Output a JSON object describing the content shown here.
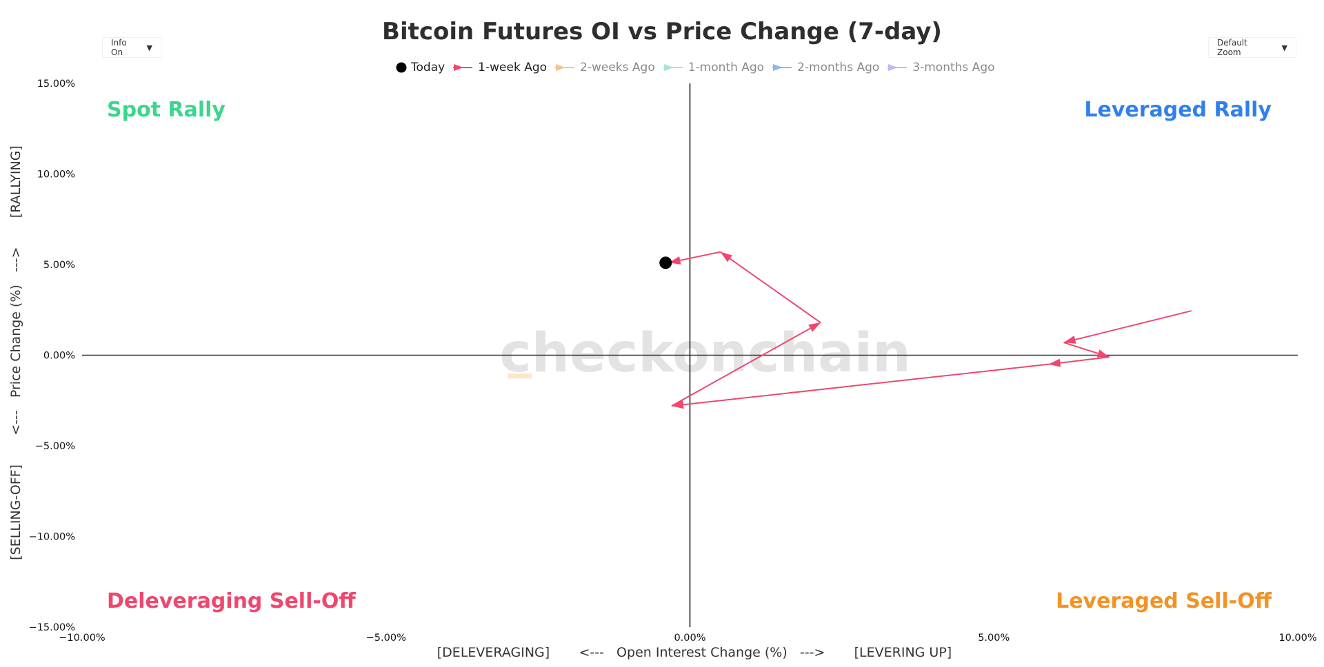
{
  "controls": {
    "info_label": "Info On",
    "zoom_label": "Default Zoom",
    "dropdown_arrow": "▼"
  },
  "watermark": "checkonchain",
  "quadrants": {
    "top_left": "Spot Rally",
    "top_right": "Leveraged Rally",
    "bottom_left": "Deleveraging Sell-Off",
    "bottom_right": "Leveraged Sell-Off"
  },
  "colors": {
    "spot_rally": "#3bd68e",
    "leveraged_rally": "#2f80ed",
    "deleveraging": "#ef476f",
    "leveraged_selloff": "#f39325",
    "today": "#000000",
    "week1": "#ef476f",
    "week2": "#f8c48a",
    "month1": "#a8e6cf",
    "month2": "#8ab8ee",
    "month3": "#c3b7f3"
  },
  "chart_data": {
    "type": "line",
    "title": "Bitcoin Futures OI vs Price Change (7-day)",
    "xlabel": "[DELEVERAGING]       <---   Open Interest Change (%)   --->       [LEVERING UP]",
    "ylabel": "[SELLING-OFF]       <---   Price Change (%)   --->       [RALLYING]",
    "xlim": [
      -10,
      10
    ],
    "ylim": [
      -15,
      15
    ],
    "x_ticks": [
      "−10.00%",
      "−5.00%",
      "0.00%",
      "5.00%",
      "10.00%"
    ],
    "y_ticks": [
      "15.00%",
      "10.00%",
      "5.00%",
      "0.00%",
      "−5.00%",
      "−10.00%",
      "−15.00%"
    ],
    "legend_position": "top-center",
    "legend_item_states": [
      "visible",
      "visible",
      "hidden",
      "hidden",
      "hidden",
      "hidden"
    ],
    "series": [
      {
        "name": "Today",
        "x": [
          -0.4
        ],
        "y": [
          5.1
        ]
      },
      {
        "name": "1-week Ago",
        "x": [
          8.25,
          6.15,
          6.9,
          5.9,
          -0.3,
          2.15,
          0.5,
          -0.35
        ],
        "y": [
          2.45,
          0.7,
          -0.1,
          -0.5,
          -2.8,
          1.8,
          5.7,
          5.1
        ]
      },
      {
        "name": "2-weeks Ago",
        "x": [
          -3.0,
          -2.6
        ],
        "y": [
          -1.15,
          -1.15
        ]
      },
      {
        "name": "1-month Ago",
        "x": [],
        "y": []
      },
      {
        "name": "2-months Ago",
        "x": [],
        "y": []
      },
      {
        "name": "3-months Ago",
        "x": [],
        "y": []
      }
    ]
  }
}
